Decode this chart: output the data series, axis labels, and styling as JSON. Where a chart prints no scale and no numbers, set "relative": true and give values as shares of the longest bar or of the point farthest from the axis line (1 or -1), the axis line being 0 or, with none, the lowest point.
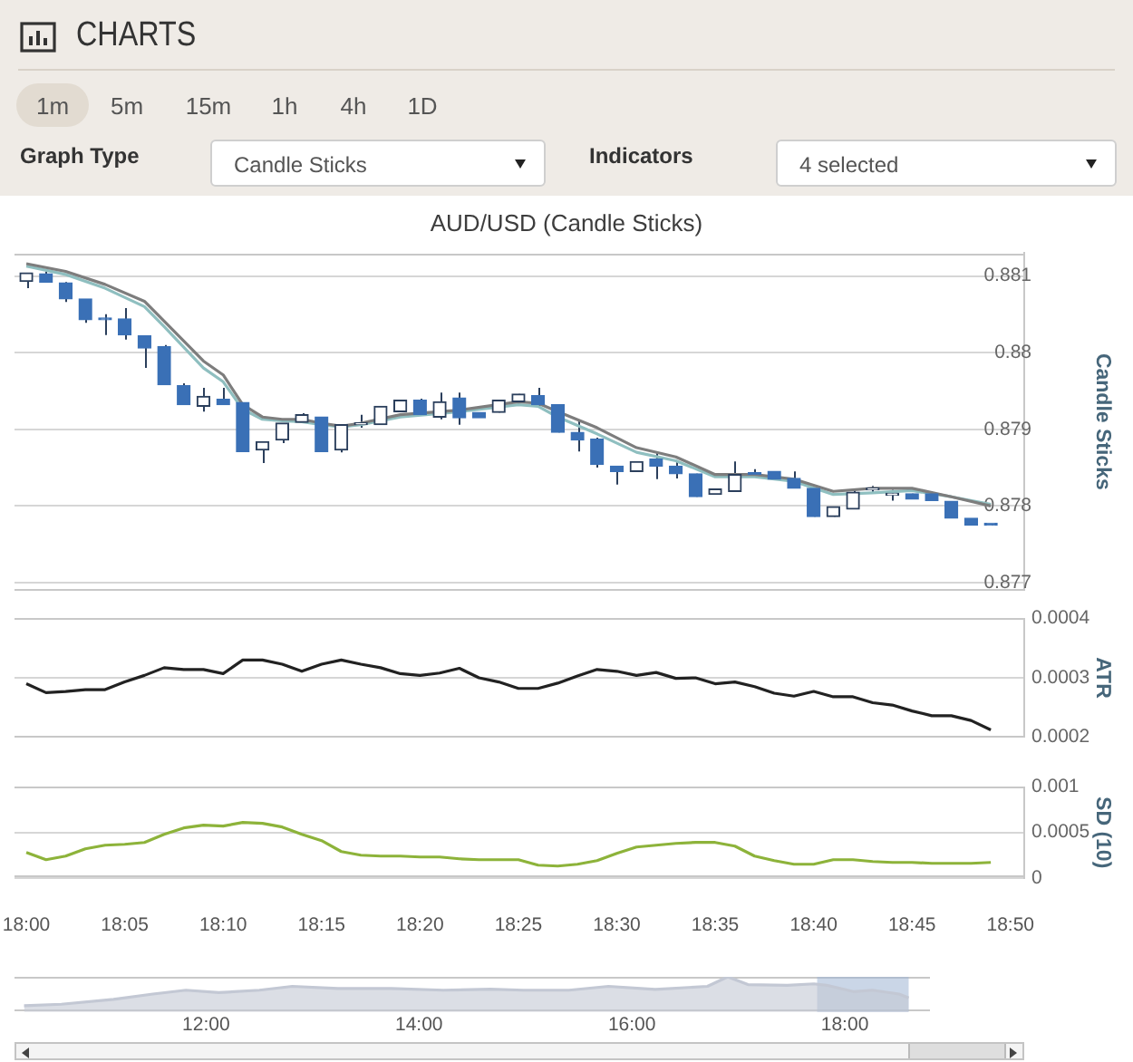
{
  "chart_data": [
    {
      "type": "other",
      "title": "CHARTS",
      "annotations": [
        "1m",
        "5m",
        "15m",
        "1h",
        "4h",
        "1D",
        "Graph Type",
        "Candle Sticks",
        "Indicators",
        "4 selected"
      ]
    },
    {
      "type": "candlestick",
      "title": "AUD/USD (Candle Sticks)",
      "ylabel": "Candle Sticks",
      "x": [
        18,
        18.0167,
        18.0333,
        18.05,
        18.0667,
        18.0833,
        18.1,
        18.1167,
        18.1333,
        18.15,
        18.1667,
        18.1833,
        18.2,
        18.2167,
        18.2333,
        18.25,
        18.2667,
        18.2833,
        18.3,
        18.3167,
        18.3333,
        18.35,
        18.3667,
        18.3833,
        18.4,
        18.4167,
        18.4333,
        18.45,
        18.4667,
        18.4833,
        18.5,
        18.5167,
        18.5333,
        18.55,
        18.5667,
        18.5833,
        18.6,
        18.6167,
        18.6333,
        18.65,
        18.6667,
        18.6833,
        18.7,
        18.7167,
        18.7333,
        18.75,
        18.7667,
        18.7833,
        18.8,
        18.8167
      ],
      "ohlc": [
        [
          0.88093,
          0.88104,
          0.88084,
          0.88104
        ],
        [
          0.88103,
          0.88106,
          0.88092,
          0.88092
        ],
        [
          0.88091,
          0.88092,
          0.88066,
          0.8807
        ],
        [
          0.8807,
          0.8807,
          0.88039,
          0.88043
        ],
        [
          0.88044,
          0.8805,
          0.88023,
          0.88043
        ],
        [
          0.88044,
          0.88058,
          0.88017,
          0.88023
        ],
        [
          0.88022,
          0.88022,
          0.8798,
          0.88006
        ],
        [
          0.88008,
          0.8801,
          0.87958,
          0.87958
        ],
        [
          0.87957,
          0.8796,
          0.87932,
          0.87932
        ],
        [
          0.8793,
          0.87954,
          0.87923,
          0.87943
        ],
        [
          0.87939,
          0.87954,
          0.87932,
          0.87932
        ],
        [
          0.87935,
          0.87935,
          0.87871,
          0.87871
        ],
        [
          0.87873,
          0.87884,
          0.87856,
          0.87884
        ],
        [
          0.87886,
          0.87908,
          0.87882,
          0.87908
        ],
        [
          0.87909,
          0.87921,
          0.87909,
          0.87919
        ],
        [
          0.87916,
          0.87916,
          0.87871,
          0.87871
        ],
        [
          0.87873,
          0.87906,
          0.8787,
          0.87906
        ],
        [
          0.87906,
          0.87919,
          0.87902,
          0.87907
        ],
        [
          0.87906,
          0.8793,
          0.87906,
          0.8793
        ],
        [
          0.87923,
          0.87938,
          0.87923,
          0.87938
        ],
        [
          0.87938,
          0.8794,
          0.87919,
          0.87919
        ],
        [
          0.87916,
          0.87948,
          0.87913,
          0.87936
        ],
        [
          0.87941,
          0.87948,
          0.87906,
          0.87915
        ],
        [
          0.87922,
          0.87922,
          0.87915,
          0.87915
        ],
        [
          0.87922,
          0.87938,
          0.87922,
          0.87938
        ],
        [
          0.87936,
          0.87946,
          0.87936,
          0.87946
        ],
        [
          0.87944,
          0.87954,
          0.87928,
          0.87932
        ],
        [
          0.87932,
          0.87932,
          0.87896,
          0.87896
        ],
        [
          0.87896,
          0.87911,
          0.87871,
          0.87886
        ],
        [
          0.87887,
          0.87889,
          0.8785,
          0.87854
        ],
        [
          0.87852,
          0.87852,
          0.87828,
          0.87845
        ],
        [
          0.87845,
          0.87858,
          0.87845,
          0.87858
        ],
        [
          0.87861,
          0.87871,
          0.87835,
          0.87852
        ],
        [
          0.87852,
          0.87858,
          0.87836,
          0.87842
        ],
        [
          0.87842,
          0.87842,
          0.87812,
          0.87812
        ],
        [
          0.87815,
          0.87822,
          0.87815,
          0.87822
        ],
        [
          0.87819,
          0.87858,
          0.87819,
          0.87841
        ],
        [
          0.87843,
          0.87848,
          0.87838,
          0.87841
        ],
        [
          0.87845,
          0.87845,
          0.87835,
          0.87835
        ],
        [
          0.87836,
          0.87845,
          0.87823,
          0.87823
        ],
        [
          0.87823,
          0.87823,
          0.87786,
          0.87786
        ],
        [
          0.87786,
          0.87799,
          0.87786,
          0.87799
        ],
        [
          0.87796,
          0.87823,
          0.87796,
          0.87818
        ],
        [
          0.87821,
          0.87826,
          0.87817,
          0.87822
        ],
        [
          0.87814,
          0.87821,
          0.87807,
          0.87815
        ],
        [
          0.87816,
          0.87816,
          0.87809,
          0.87809
        ],
        [
          0.87816,
          0.87816,
          0.87807,
          0.87807
        ],
        [
          0.87806,
          0.87806,
          0.87784,
          0.87784
        ],
        [
          0.87784,
          0.87784,
          0.87775,
          0.87775
        ],
        [
          0.87776,
          0.87776,
          0.87775,
          0.87775
        ]
      ],
      "colors": [
        "#2b3f5c",
        "#3a70b6",
        "#3a70b6",
        "#3a70b6",
        "#3a70b6",
        "#3a70b6",
        "#3a70b6",
        "#3a70b6",
        "#3a70b6",
        "#2b3f5c",
        "#3a70b6",
        "#3a70b6",
        "#2b3f5c",
        "#2b3f5c",
        "#2b3f5c",
        "#3a70b6",
        "#2b3f5c",
        "#2b3f5c",
        "#2b3f5c",
        "#2b3f5c",
        "#3a70b6",
        "#2b3f5c",
        "#3a70b6",
        "#3a70b6",
        "#2b3f5c",
        "#2b3f5c",
        "#3a70b6",
        "#3a70b6",
        "#3a70b6",
        "#3a70b6",
        "#3a70b6",
        "#2b3f5c",
        "#3a70b6",
        "#3a70b6",
        "#3a70b6",
        "#2b3f5c",
        "#2b3f5c",
        "#3a70b6",
        "#3a70b6",
        "#3a70b6",
        "#3a70b6",
        "#2b3f5c",
        "#2b3f5c",
        "#2b3f5c",
        "#2b3f5c",
        "#3a70b6",
        "#3a70b6",
        "#3a70b6",
        "#3a70b6",
        "#3a70b6"
      ],
      "series": [
        {
          "type": "line",
          "color": "#7d7d7d",
          "x": [
            18,
            18.0333,
            18.0667,
            18.1,
            18.1167,
            18.15,
            18.1667,
            18.1833,
            18.2,
            18.2167,
            18.2333,
            18.25,
            18.2667,
            18.2833,
            18.3167,
            18.3667,
            18.4167,
            18.4333,
            18.45,
            18.4833,
            18.5167,
            18.55,
            18.5833,
            18.6167,
            18.65,
            18.6833,
            18.7167,
            18.75,
            18.7833,
            18.8167
          ],
          "values": [
            0.88116,
            0.88106,
            0.88089,
            0.88067,
            0.88041,
            0.87989,
            0.87971,
            0.87932,
            0.87916,
            0.87913,
            0.87913,
            0.87908,
            0.87904,
            0.87908,
            0.87919,
            0.87925,
            0.87936,
            0.87934,
            0.87923,
            0.87902,
            0.87876,
            0.87864,
            0.87841,
            0.87841,
            0.87835,
            0.87819,
            0.87823,
            0.87823,
            0.87812,
            0.878
          ]
        },
        {
          "type": "line",
          "color": "#8fbfc0",
          "x": [
            18,
            18.0333,
            18.0667,
            18.1,
            18.1167,
            18.15,
            18.1667,
            18.1833,
            18.2,
            18.2167,
            18.2333,
            18.25,
            18.2667,
            18.2833,
            18.3167,
            18.3667,
            18.4167,
            18.4333,
            18.45,
            18.4833,
            18.5167,
            18.55,
            18.5833,
            18.6167,
            18.65,
            18.6833,
            18.7167,
            18.75,
            18.7833,
            18.8167
          ],
          "values": [
            0.88113,
            0.88102,
            0.88084,
            0.8806,
            0.88034,
            0.8798,
            0.87962,
            0.87926,
            0.87913,
            0.87911,
            0.8791,
            0.87906,
            0.87903,
            0.87906,
            0.87916,
            0.87923,
            0.87932,
            0.8793,
            0.87916,
            0.87894,
            0.8787,
            0.87859,
            0.87838,
            0.87838,
            0.87832,
            0.87815,
            0.87817,
            0.8782,
            0.87812,
            0.87802
          ]
        }
      ],
      "xlim": [
        17.99,
        18.845
      ],
      "ylim": [
        0.8769,
        0.8813
      ],
      "yticks": [
        0.877,
        0.878,
        0.879,
        0.88,
        0.881
      ],
      "grid": "y",
      "tick_labels": "y"
    },
    {
      "type": "line",
      "ylabel": "ATR",
      "color": "#222222",
      "x": [
        18,
        18.0167,
        18.0333,
        18.05,
        18.0667,
        18.0833,
        18.1,
        18.1167,
        18.1333,
        18.15,
        18.1667,
        18.1833,
        18.2,
        18.2167,
        18.2333,
        18.25,
        18.2667,
        18.2833,
        18.3,
        18.3167,
        18.3333,
        18.35,
        18.3667,
        18.3833,
        18.4,
        18.4167,
        18.4333,
        18.45,
        18.4667,
        18.4833,
        18.5,
        18.5167,
        18.5333,
        18.55,
        18.5667,
        18.5833,
        18.6,
        18.6167,
        18.6333,
        18.65,
        18.6667,
        18.6833,
        18.7,
        18.7167,
        18.7333,
        18.75,
        18.7667,
        18.7833,
        18.8,
        18.8167
      ],
      "values": [
        0.00029,
        0.000275,
        0.000277,
        0.00028,
        0.00028,
        0.000293,
        0.000304,
        0.000317,
        0.000314,
        0.000314,
        0.000307,
        0.00033,
        0.00033,
        0.000323,
        0.000311,
        0.000323,
        0.00033,
        0.000323,
        0.000317,
        0.000307,
        0.000304,
        0.000308,
        0.000316,
        0.0003,
        0.000293,
        0.000282,
        0.000282,
        0.000291,
        0.000303,
        0.000314,
        0.000311,
        0.000304,
        0.000309,
        0.000299,
        0.0003,
        0.00029,
        0.000293,
        0.000285,
        0.000274,
        0.000269,
        0.000277,
        0.000268,
        0.000268,
        0.000258,
        0.000254,
        0.000244,
        0.000236,
        0.000236,
        0.000228,
        0.000212
      ],
      "xlim": [
        17.99,
        18.845
      ],
      "ylim": [
        0.0002,
        0.0004
      ],
      "yticks": [
        0.0002,
        0.0003,
        0.0004
      ],
      "grid": "y",
      "tick_labels": "y"
    },
    {
      "type": "line",
      "ylabel": "SD (10)",
      "color": "#8db33a",
      "x": [
        18,
        18.0167,
        18.0333,
        18.05,
        18.0667,
        18.0833,
        18.1,
        18.1167,
        18.1333,
        18.15,
        18.1667,
        18.1833,
        18.2,
        18.2167,
        18.2333,
        18.25,
        18.2667,
        18.2833,
        18.3,
        18.3167,
        18.3333,
        18.35,
        18.3667,
        18.3833,
        18.4,
        18.4167,
        18.4333,
        18.45,
        18.4667,
        18.4833,
        18.5,
        18.5167,
        18.5333,
        18.55,
        18.5667,
        18.5833,
        18.6,
        18.6167,
        18.6333,
        18.65,
        18.6667,
        18.6833,
        18.7,
        18.7167,
        18.7333,
        18.75,
        18.7667,
        18.7833,
        18.8,
        18.8167
      ],
      "values": [
        0.00028,
        0.0002,
        0.00024,
        0.00032,
        0.00036,
        0.00037,
        0.00039,
        0.00048,
        0.00055,
        0.00058,
        0.00057,
        0.00061,
        0.0006,
        0.00056,
        0.00048,
        0.00041,
        0.00029,
        0.00025,
        0.00024,
        0.00024,
        0.00023,
        0.00023,
        0.00021,
        0.0002,
        0.0002,
        0.0002,
        0.00014,
        0.00013,
        0.00015,
        0.00019,
        0.00027,
        0.00034,
        0.00036,
        0.00038,
        0.00039,
        0.00039,
        0.00035,
        0.00024,
        0.00019,
        0.00015,
        0.00015,
        0.0002,
        0.0002,
        0.00018,
        0.00017,
        0.00017,
        0.00016,
        0.00016,
        0.00016,
        0.00017
      ],
      "xlim": [
        17.99,
        18.845
      ],
      "xticks": [
        {
          "value": 18,
          "label": "18:00"
        },
        {
          "value": 18.0833,
          "label": "18:05"
        },
        {
          "value": 18.1667,
          "label": "18:10"
        },
        {
          "value": 18.25,
          "label": "18:15"
        },
        {
          "value": 18.3333,
          "label": "18:20"
        },
        {
          "value": 18.4167,
          "label": "18:25"
        },
        {
          "value": 18.5,
          "label": "18:30"
        },
        {
          "value": 18.5833,
          "label": "18:35"
        },
        {
          "value": 18.6667,
          "label": "18:40"
        },
        {
          "value": 18.75,
          "label": "18:45"
        },
        {
          "value": 18.8333,
          "label": "18:50"
        }
      ],
      "ylim": [
        0,
        0.001
      ],
      "yticks": [
        0,
        0.0005,
        0.001
      ],
      "grid": "y"
    },
    {
      "type": "area",
      "relative": true,
      "color": "#c3c8d4",
      "x": [
        10.29,
        10.64,
        11.13,
        11.5,
        11.81,
        12.12,
        12.5,
        12.81,
        13.24,
        13.74,
        14.23,
        14.67,
        14.98,
        15.41,
        15.78,
        16.22,
        16.71,
        16.9,
        17.09,
        17.46,
        17.71,
        17.83,
        18.08,
        18.26,
        18.51,
        18.6
      ],
      "values": [
        0.18,
        0.22,
        0.36,
        0.51,
        0.62,
        0.55,
        0.62,
        0.73,
        0.67,
        0.67,
        0.62,
        0.65,
        0.62,
        0.62,
        0.73,
        0.64,
        0.73,
        1,
        0.78,
        0.76,
        0.8,
        0.76,
        0.58,
        0.62,
        0.51,
        0.4
      ],
      "xlim": [
        10.2,
        18.8
      ],
      "xticks": [
        {
          "value": 12,
          "label": "12:00"
        },
        {
          "value": 14,
          "label": "14:00"
        },
        {
          "value": 16,
          "label": "16:00"
        },
        {
          "value": 18,
          "label": "18:00"
        }
      ],
      "bands": [
        {
          "axis": "x",
          "from": 17.74,
          "to": 18.6,
          "color": "#9fb4d4"
        }
      ]
    }
  ]
}
